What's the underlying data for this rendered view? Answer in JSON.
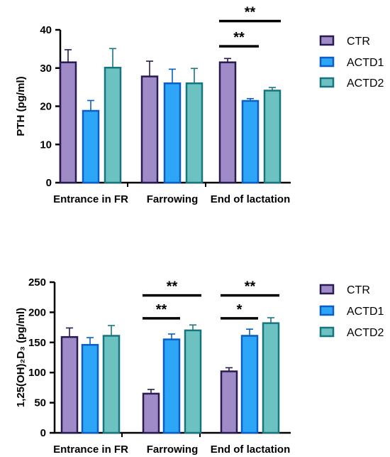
{
  "colors": {
    "CTR": {
      "fill": "#9e8bc8",
      "stroke": "#2a1a52"
    },
    "ACTD1": {
      "fill": "#2ea6f7",
      "stroke": "#0a5fc7"
    },
    "ACTD2": {
      "fill": "#6cc2c0",
      "stroke": "#167680"
    }
  },
  "chart_data": [
    {
      "type": "bar",
      "ylabel": "PTH (pg/ml)",
      "ylim": [
        0,
        40
      ],
      "yticks": [
        "0",
        "10",
        "20",
        "30",
        "40"
      ],
      "categories": [
        "Entrance in FR",
        "Farrowing",
        "End of lactation"
      ],
      "series": [
        {
          "name": "CTR",
          "values": [
            31.5,
            27.8,
            31.5
          ],
          "errors": [
            3.3,
            4.0,
            1.0
          ]
        },
        {
          "name": "ACTD1",
          "values": [
            18.8,
            26.0,
            21.4
          ],
          "errors": [
            2.7,
            3.7,
            0.6
          ]
        },
        {
          "name": "ACTD2",
          "values": [
            30.1,
            26.0,
            24.1
          ],
          "errors": [
            5.0,
            3.9,
            0.8
          ]
        }
      ],
      "legend": "right",
      "significance": [
        {
          "category": "End of lactation",
          "from": "CTR",
          "to": "ACTD2",
          "label": "**",
          "level": 42.3
        },
        {
          "category": "End of lactation",
          "from": "CTR",
          "to": "ACTD1",
          "label": "**",
          "level": 35.7
        }
      ]
    },
    {
      "type": "bar",
      "ylabel": "1,25(OH)₂D₃ (pg/ml)",
      "ylim": [
        0,
        250
      ],
      "yticks": [
        "0",
        "50",
        "100",
        "150",
        "200",
        "250"
      ],
      "categories": [
        "Entrance in FR",
        "Farrowing",
        "End of lactation"
      ],
      "series": [
        {
          "name": "CTR",
          "values": [
            159,
            65,
            102
          ],
          "errors": [
            15,
            7,
            6
          ]
        },
        {
          "name": "ACTD1",
          "values": [
            146,
            155,
            161
          ],
          "errors": [
            12,
            9,
            11
          ]
        },
        {
          "name": "ACTD2",
          "values": [
            161,
            170,
            182
          ],
          "errors": [
            17,
            9,
            9
          ]
        }
      ],
      "legend": "right",
      "significance": [
        {
          "category": "Farrowing",
          "from": "CTR",
          "to": "ACTD2",
          "label": "**",
          "level": 228
        },
        {
          "category": "Farrowing",
          "from": "CTR",
          "to": "ACTD1",
          "label": "**",
          "level": 190
        },
        {
          "category": "End of lactation",
          "from": "CTR",
          "to": "ACTD2",
          "label": "**",
          "level": 228
        },
        {
          "category": "End of lactation",
          "from": "CTR",
          "to": "ACTD1",
          "label": "*",
          "level": 190
        }
      ]
    }
  ]
}
